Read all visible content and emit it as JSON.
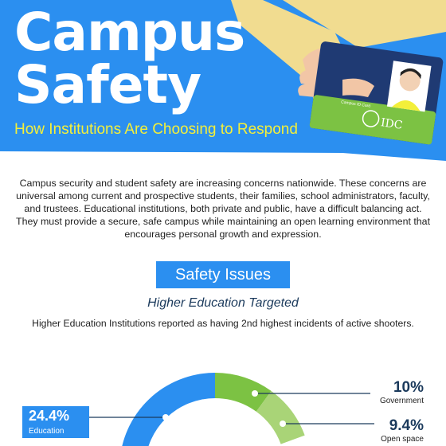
{
  "header": {
    "title_line1": "Campus",
    "title_line2": "Safety",
    "subtitle": "How Institutions Are Choosing to Respond",
    "card": {
      "label": "STUDENT",
      "logo_text": "IDC",
      "small_text": "Campus ID Card"
    }
  },
  "intro_text": "Campus security and student safety are increasing concerns nationwide. These concerns are universal among current and prospective students, their families, school administrators, faculty, and trustees.  Educational institutions, both private and public, have a difficult balancing act. They must provide a secure, safe campus while maintaining an open learning environment that encourages personal growth and expression.",
  "section": {
    "button_label": "Safety Issues",
    "heading": "Higher Education Targeted",
    "subtext": "Higher Education Institutions reported as having 2nd highest incidents of active shooters."
  },
  "chart_data": {
    "type": "pie",
    "categories": [
      "Education",
      "Government",
      "Open space"
    ],
    "values": [
      24.4,
      10,
      9.4
    ],
    "labels": [
      "24.4%",
      "10%",
      "9.4%"
    ]
  },
  "colors": {
    "header_blue": "#2b8ff0",
    "subtitle_yellow": "#f3ef3a",
    "education_blue": "#2b8ff0",
    "government_green": "#7cc243",
    "open_space_green": "#a9d477"
  }
}
